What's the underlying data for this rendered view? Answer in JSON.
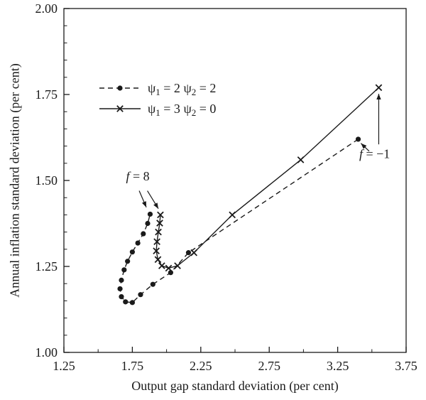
{
  "figure": {
    "background": "#ffffff",
    "ink": "#1a1a1a"
  },
  "chart_data": {
    "type": "line",
    "title": "",
    "xlabel": "Output gap standard deviation (per cent)",
    "ylabel": "Annual inflation standard deviation (per cent)",
    "xlim": [
      1.25,
      3.75
    ],
    "ylim": [
      1.0,
      2.0
    ],
    "x_major_ticks": [
      1.25,
      1.75,
      2.25,
      2.75,
      3.25,
      3.75
    ],
    "x_tick_labels": [
      "1.25",
      "1.75",
      "2.25",
      "2.75",
      "3.25",
      "3.75"
    ],
    "x_minor_step": 0.25,
    "y_major_ticks": [
      1.0,
      1.25,
      1.5,
      1.75,
      2.0
    ],
    "y_tick_labels": [
      "1.00",
      "1.25",
      "1.50",
      "1.75",
      "2.00"
    ],
    "y_minor_step": 0.05,
    "grid": false,
    "frame": true,
    "legend_position": "upper-left-inside",
    "series": [
      {
        "id": "psi-2-2",
        "label": "ψ1 = 2 ψ2 = 2",
        "psi1": "2",
        "psi2": "2",
        "line": "dashed",
        "marker": "circle",
        "points": [
          [
            3.4,
            1.62
          ],
          [
            2.16,
            1.29
          ],
          [
            2.03,
            1.232
          ],
          [
            1.9,
            1.198
          ],
          [
            1.81,
            1.168
          ],
          [
            1.75,
            1.145
          ],
          [
            1.7,
            1.147
          ],
          [
            1.67,
            1.162
          ],
          [
            1.66,
            1.185
          ],
          [
            1.67,
            1.21
          ],
          [
            1.69,
            1.24
          ],
          [
            1.715,
            1.265
          ],
          [
            1.75,
            1.292
          ],
          [
            1.79,
            1.318
          ],
          [
            1.83,
            1.345
          ],
          [
            1.862,
            1.375
          ],
          [
            1.88,
            1.402
          ]
        ]
      },
      {
        "id": "psi-3-0",
        "label": "ψ1 = 3 ψ2 = 0",
        "psi1": "3",
        "psi2": "0",
        "line": "solid",
        "marker": "x",
        "points": [
          [
            3.55,
            1.77
          ],
          [
            2.98,
            1.56
          ],
          [
            2.48,
            1.4
          ],
          [
            2.2,
            1.29
          ],
          [
            2.08,
            1.252
          ],
          [
            2.015,
            1.245
          ],
          [
            1.965,
            1.252
          ],
          [
            1.937,
            1.27
          ],
          [
            1.925,
            1.295
          ],
          [
            1.93,
            1.322
          ],
          [
            1.94,
            1.35
          ],
          [
            1.95,
            1.376
          ],
          [
            1.955,
            1.4
          ]
        ]
      }
    ],
    "annotations": [
      {
        "text": "f = 8",
        "x": 1.79,
        "y": 1.5,
        "arrows": [
          {
            "x1": 1.8,
            "y1": 1.47,
            "x2": 1.852,
            "y2": 1.422
          },
          {
            "x1": 1.86,
            "y1": 1.47,
            "x2": 1.94,
            "y2": 1.418
          }
        ]
      },
      {
        "text": "f = −1",
        "x": 3.52,
        "y": 1.565,
        "arrows": [
          {
            "x1": 3.55,
            "y1": 1.605,
            "x2": 3.55,
            "y2": 1.752
          },
          {
            "x1": 3.48,
            "y1": 1.585,
            "x2": 3.42,
            "y2": 1.608
          }
        ]
      }
    ]
  }
}
